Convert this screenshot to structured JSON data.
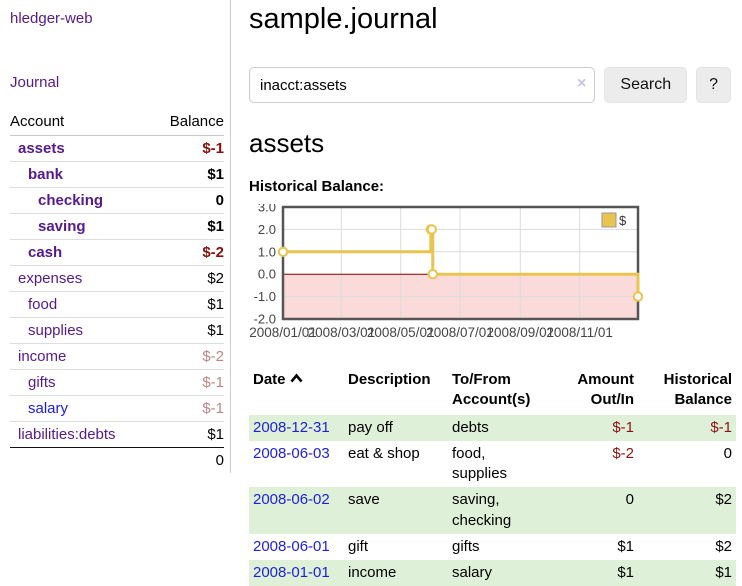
{
  "sidebar": {
    "brand": "hledger-web",
    "nav_journal": "Journal",
    "accounts_table": {
      "col_account": "Account",
      "col_balance": "Balance",
      "rows": [
        {
          "name": "assets",
          "balance": "$-1",
          "indent": 1,
          "bold": true,
          "neg": "strong"
        },
        {
          "name": "bank",
          "balance": "$1",
          "indent": 2,
          "bold": true,
          "neg": "none"
        },
        {
          "name": "checking",
          "balance": "0",
          "indent": 3,
          "bold": true,
          "neg": "none"
        },
        {
          "name": "saving",
          "balance": "$1",
          "indent": 3,
          "bold": true,
          "neg": "none"
        },
        {
          "name": "cash",
          "balance": "$-2",
          "indent": 2,
          "bold": true,
          "neg": "strong"
        },
        {
          "name": "expenses",
          "balance": "$2",
          "indent": 1,
          "bold": false,
          "neg": "none"
        },
        {
          "name": "food",
          "balance": "$1",
          "indent": 2,
          "bold": false,
          "neg": "none"
        },
        {
          "name": "supplies",
          "balance": "$1",
          "indent": 2,
          "bold": false,
          "neg": "none"
        },
        {
          "name": "income",
          "balance": "$-2",
          "indent": 1,
          "bold": false,
          "neg": "faded"
        },
        {
          "name": "gifts",
          "balance": "$-1",
          "indent": 2,
          "bold": false,
          "neg": "faded"
        },
        {
          "name": "salary",
          "balance": "$-1",
          "indent": 2,
          "bold": false,
          "neg": "faded",
          "link_color": "blue"
        },
        {
          "name": "liabilities:debts",
          "balance": "$1",
          "indent": 1,
          "bold": false,
          "neg": "none"
        }
      ],
      "total": "0"
    }
  },
  "header": {
    "title": "sample.journal"
  },
  "search": {
    "value": "inacct:assets",
    "clear_icon": "×",
    "button_label": "Search",
    "help_label": "?"
  },
  "main": {
    "account_title": "assets",
    "chart_label": "Historical Balance:"
  },
  "chart_data": {
    "type": "line",
    "step": true,
    "title": "Historical Balance",
    "legend_position": "top-right",
    "x_domain_days": [
      0,
      365
    ],
    "ylim": [
      -2,
      3
    ],
    "yticks": [
      {
        "label": "3.0",
        "value": 3
      },
      {
        "label": "2.0",
        "value": 2
      },
      {
        "label": "1.0",
        "value": 1
      },
      {
        "label": "0.0",
        "value": 0
      },
      {
        "label": "-1.0",
        "value": -1
      },
      {
        "label": "-2.0",
        "value": -2
      }
    ],
    "xticks": [
      {
        "label": "2008/01/01",
        "day": 0
      },
      {
        "label": "2008/03/01",
        "day": 60
      },
      {
        "label": "2008/05/01",
        "day": 121
      },
      {
        "label": "2008/07/01",
        "day": 182
      },
      {
        "label": "2008/09/01",
        "day": 244
      },
      {
        "label": "2008/11/01",
        "day": 305
      }
    ],
    "series": [
      {
        "name": "$",
        "color": "#E9C44E",
        "points": [
          {
            "date": "2008-01-01",
            "day": 0,
            "value": 1
          },
          {
            "date": "2008-06-01",
            "day": 152,
            "value": 2
          },
          {
            "date": "2008-06-02",
            "day": 153,
            "value": 2
          },
          {
            "date": "2008-06-03",
            "day": 154,
            "value": 0
          },
          {
            "date": "2008-12-31",
            "day": 365,
            "value": -1
          }
        ]
      }
    ],
    "negative_region_fill": "#fbdada",
    "zero_line_color": "#8b0000",
    "grid_color": "#dcdcdc",
    "border_color": "#555555",
    "tick_label_color": "#444444"
  },
  "register_table": {
    "headers": {
      "date": "Date",
      "sort_icon": "chevron-up",
      "description": "Description",
      "tofrom": "To/From Account(s)",
      "amount": "Amount Out/In",
      "balance": "Historical Balance"
    },
    "rows": [
      {
        "date": "2008-12-31",
        "description": "pay off",
        "accounts": "debts",
        "amount": "$-1",
        "amount_neg": true,
        "balance": "$-1",
        "balance_neg": true
      },
      {
        "date": "2008-06-03",
        "description": "eat & shop",
        "accounts": "food, supplies",
        "amount": "$-2",
        "amount_neg": true,
        "balance": "0",
        "balance_neg": false
      },
      {
        "date": "2008-06-02",
        "description": "save",
        "accounts": "saving, checking",
        "amount": "0",
        "amount_neg": false,
        "balance": "$2",
        "balance_neg": false
      },
      {
        "date": "2008-06-01",
        "description": "gift",
        "accounts": "gifts",
        "amount": "$1",
        "amount_neg": false,
        "balance": "$2",
        "balance_neg": false
      },
      {
        "date": "2008-01-01",
        "description": "income",
        "accounts": "salary",
        "amount": "$1",
        "amount_neg": false,
        "balance": "$1",
        "balance_neg": false
      }
    ]
  }
}
